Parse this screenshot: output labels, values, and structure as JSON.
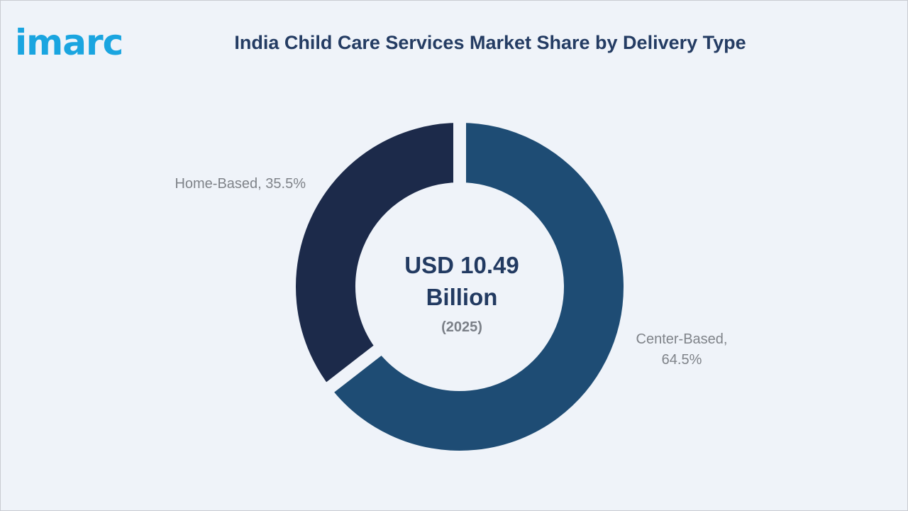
{
  "logo": {
    "text": "imarc",
    "color": "#1aa5e0"
  },
  "chart_data": {
    "type": "pie",
    "title": "India Child Care Services Market Share by Delivery Type",
    "center": {
      "value_line1": "USD 10.49",
      "value_line2": "Billion",
      "year": "(2025)"
    },
    "categories": [
      "Center-Based",
      "Home-Based"
    ],
    "values": [
      64.5,
      35.5
    ],
    "unit": "%",
    "colors": [
      "#1e4c74",
      "#1c2a4a"
    ],
    "labels": {
      "center_based_line1": "Center-Based,",
      "center_based_line2": "64.5%",
      "home_based": "Home-Based, 35.5%"
    }
  }
}
